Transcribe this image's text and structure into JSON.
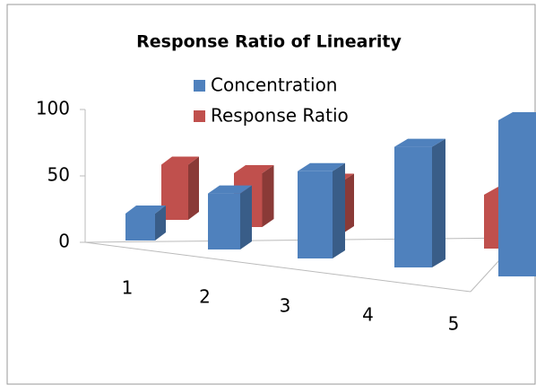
{
  "chart_data": {
    "type": "bar3d",
    "title": "Response Ratio  of Linearity",
    "categories": [
      "1",
      "2",
      "3",
      "4",
      "5"
    ],
    "series": [
      {
        "name": "Concentration",
        "color": "#4f81bd",
        "values": [
          20,
          40,
          60,
          80,
          100
        ]
      },
      {
        "name": "Response Ratio",
        "color": "#c0504d",
        "values": [
          41,
          40,
          39,
          38,
          40
        ]
      }
    ],
    "ylim": [
      0,
      100
    ],
    "yticks": [
      0,
      50,
      100
    ]
  }
}
